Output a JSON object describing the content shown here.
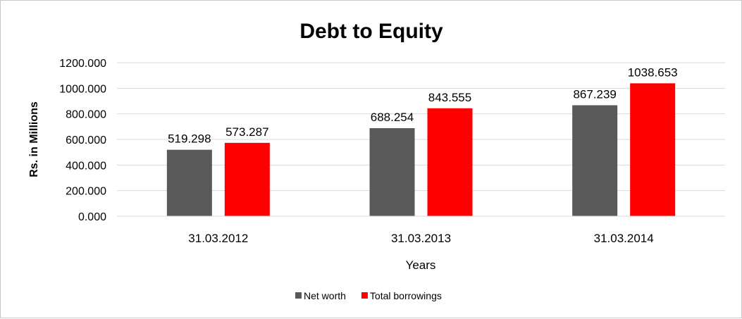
{
  "chart_data": {
    "type": "bar",
    "title": "Debt to Equity",
    "xlabel": "Years",
    "ylabel": "Rs. in Millions",
    "categories": [
      "31.03.2012",
      "31.03.2013",
      "31.03.2014"
    ],
    "series": [
      {
        "name": "Net worth",
        "color": "#595959",
        "values": [
          519.298,
          688.254,
          867.239
        ],
        "labels": [
          "519.298",
          "688.254",
          "867.239"
        ]
      },
      {
        "name": "Total borrowings",
        "color": "#ff0000",
        "values": [
          573.287,
          843.555,
          1038.653
        ],
        "labels": [
          "573.287",
          "843.555",
          "1038.653"
        ]
      }
    ],
    "ylim": [
      0,
      1200
    ],
    "yticks": [
      0,
      200,
      400,
      600,
      800,
      1000,
      1200
    ],
    "ytick_labels": [
      "0.000",
      "200.000",
      "400.000",
      "600.000",
      "800.000",
      "1000.000",
      "1200.000"
    ],
    "grid": true,
    "legend_position": "bottom"
  }
}
